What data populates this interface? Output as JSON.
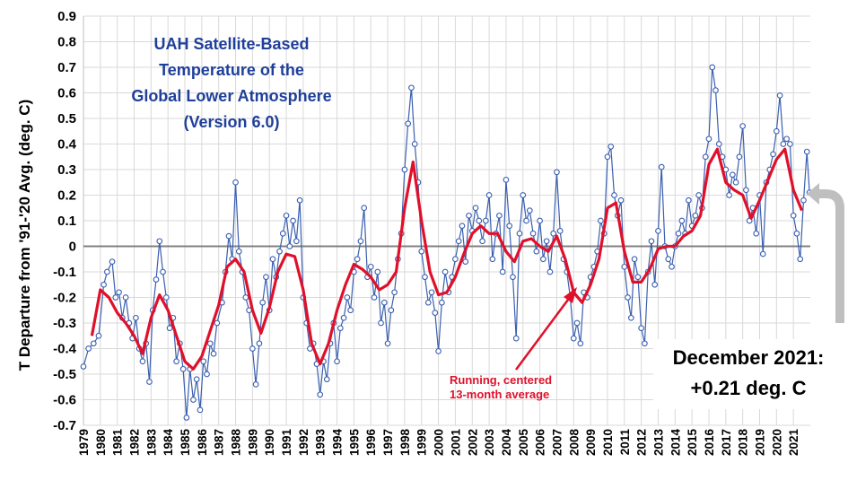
{
  "chart_data": {
    "type": "line",
    "title": [
      "UAH Satellite-Based",
      "Temperature of the",
      "Global Lower Atmosphere",
      "(Version 6.0)"
    ],
    "ylabel": "T Departure from '91-'20 Avg. (deg. C)",
    "xlabel": "",
    "ylim": [
      -0.7,
      0.9
    ],
    "y_ticks": [
      "0.9",
      "0.8",
      "0.7",
      "0.6",
      "0.5",
      "0.4",
      "0.3",
      "0.2",
      "0.1",
      "0",
      "-0.1",
      "-0.2",
      "-0.3",
      "-0.4",
      "-0.5",
      "-0.6",
      "-0.7"
    ],
    "x_ticks": [
      "1979",
      "1980",
      "1981",
      "1982",
      "1983",
      "1984",
      "1985",
      "1986",
      "1987",
      "1988",
      "1989",
      "1990",
      "1991",
      "1992",
      "1993",
      "1994",
      "1995",
      "1996",
      "1997",
      "1998",
      "1999",
      "2000",
      "2001",
      "2002",
      "2003",
      "2004",
      "2005",
      "2006",
      "2007",
      "2008",
      "2009",
      "2010",
      "2011",
      "2012",
      "2013",
      "2014",
      "2015",
      "2016",
      "2017",
      "2018",
      "2019",
      "2020",
      "2021"
    ],
    "grid": true,
    "colors": {
      "monthly": "#3a5fb0",
      "average": "#e0102a",
      "zero_line": "#808080",
      "title": "#1f3f99",
      "callout_arrow": "#bfbfbf"
    },
    "series_monthly_anchors": [
      [
        1979.0,
        -0.47
      ],
      [
        1979.3,
        -0.4
      ],
      [
        1979.6,
        -0.38
      ],
      [
        1979.9,
        -0.35
      ],
      [
        1980.2,
        -0.15
      ],
      [
        1980.4,
        -0.1
      ],
      [
        1980.7,
        -0.06
      ],
      [
        1980.9,
        -0.2
      ],
      [
        1981.1,
        -0.18
      ],
      [
        1981.3,
        -0.28
      ],
      [
        1981.5,
        -0.2
      ],
      [
        1981.7,
        -0.3
      ],
      [
        1981.9,
        -0.36
      ],
      [
        1982.1,
        -0.28
      ],
      [
        1982.3,
        -0.4
      ],
      [
        1982.5,
        -0.45
      ],
      [
        1982.7,
        -0.38
      ],
      [
        1982.9,
        -0.53
      ],
      [
        1983.1,
        -0.25
      ],
      [
        1983.3,
        -0.13
      ],
      [
        1983.5,
        0.02
      ],
      [
        1983.7,
        -0.1
      ],
      [
        1983.9,
        -0.2
      ],
      [
        1984.1,
        -0.32
      ],
      [
        1984.3,
        -0.28
      ],
      [
        1984.5,
        -0.45
      ],
      [
        1984.7,
        -0.38
      ],
      [
        1984.9,
        -0.48
      ],
      [
        1985.1,
        -0.67
      ],
      [
        1985.3,
        -0.48
      ],
      [
        1985.5,
        -0.6
      ],
      [
        1985.7,
        -0.52
      ],
      [
        1985.9,
        -0.64
      ],
      [
        1986.1,
        -0.45
      ],
      [
        1986.3,
        -0.5
      ],
      [
        1986.5,
        -0.38
      ],
      [
        1986.7,
        -0.42
      ],
      [
        1986.9,
        -0.3
      ],
      [
        1987.2,
        -0.22
      ],
      [
        1987.4,
        -0.1
      ],
      [
        1987.6,
        0.04
      ],
      [
        1987.8,
        -0.05
      ],
      [
        1988.0,
        0.25
      ],
      [
        1988.2,
        -0.02
      ],
      [
        1988.4,
        -0.1
      ],
      [
        1988.6,
        -0.2
      ],
      [
        1988.8,
        -0.25
      ],
      [
        1989.0,
        -0.4
      ],
      [
        1989.2,
        -0.54
      ],
      [
        1989.4,
        -0.38
      ],
      [
        1989.6,
        -0.22
      ],
      [
        1989.8,
        -0.12
      ],
      [
        1990.0,
        -0.25
      ],
      [
        1990.2,
        -0.05
      ],
      [
        1990.4,
        -0.12
      ],
      [
        1990.6,
        -0.02
      ],
      [
        1990.8,
        0.05
      ],
      [
        1991.0,
        0.12
      ],
      [
        1991.2,
        0.0
      ],
      [
        1991.4,
        0.1
      ],
      [
        1991.6,
        0.02
      ],
      [
        1991.8,
        0.18
      ],
      [
        1992.0,
        -0.2
      ],
      [
        1992.2,
        -0.3
      ],
      [
        1992.4,
        -0.4
      ],
      [
        1992.6,
        -0.38
      ],
      [
        1992.8,
        -0.46
      ],
      [
        1993.0,
        -0.58
      ],
      [
        1993.2,
        -0.45
      ],
      [
        1993.4,
        -0.52
      ],
      [
        1993.6,
        -0.38
      ],
      [
        1993.8,
        -0.3
      ],
      [
        1994.0,
        -0.45
      ],
      [
        1994.2,
        -0.32
      ],
      [
        1994.4,
        -0.28
      ],
      [
        1994.6,
        -0.2
      ],
      [
        1994.8,
        -0.25
      ],
      [
        1995.0,
        -0.1
      ],
      [
        1995.2,
        -0.05
      ],
      [
        1995.4,
        0.02
      ],
      [
        1995.6,
        0.15
      ],
      [
        1995.8,
        -0.12
      ],
      [
        1996.0,
        -0.08
      ],
      [
        1996.2,
        -0.2
      ],
      [
        1996.4,
        -0.1
      ],
      [
        1996.6,
        -0.3
      ],
      [
        1996.8,
        -0.22
      ],
      [
        1997.0,
        -0.38
      ],
      [
        1997.2,
        -0.25
      ],
      [
        1997.4,
        -0.18
      ],
      [
        1997.6,
        -0.05
      ],
      [
        1997.8,
        0.05
      ],
      [
        1998.0,
        0.3
      ],
      [
        1998.2,
        0.48
      ],
      [
        1998.4,
        0.62
      ],
      [
        1998.6,
        0.4
      ],
      [
        1998.8,
        0.25
      ],
      [
        1999.0,
        -0.02
      ],
      [
        1999.2,
        -0.12
      ],
      [
        1999.4,
        -0.22
      ],
      [
        1999.6,
        -0.18
      ],
      [
        1999.8,
        -0.26
      ],
      [
        2000.0,
        -0.41
      ],
      [
        2000.2,
        -0.22
      ],
      [
        2000.4,
        -0.1
      ],
      [
        2000.6,
        -0.18
      ],
      [
        2000.8,
        -0.12
      ],
      [
        2001.0,
        -0.05
      ],
      [
        2001.2,
        0.02
      ],
      [
        2001.4,
        0.08
      ],
      [
        2001.6,
        -0.06
      ],
      [
        2001.8,
        0.12
      ],
      [
        2002.0,
        0.06
      ],
      [
        2002.2,
        0.15
      ],
      [
        2002.4,
        0.1
      ],
      [
        2002.6,
        0.02
      ],
      [
        2002.8,
        0.1
      ],
      [
        2003.0,
        0.2
      ],
      [
        2003.2,
        -0.05
      ],
      [
        2003.4,
        0.05
      ],
      [
        2003.6,
        0.12
      ],
      [
        2003.8,
        -0.1
      ],
      [
        2004.0,
        0.26
      ],
      [
        2004.2,
        0.08
      ],
      [
        2004.4,
        -0.12
      ],
      [
        2004.6,
        -0.36
      ],
      [
        2004.8,
        0.05
      ],
      [
        2005.0,
        0.2
      ],
      [
        2005.2,
        0.1
      ],
      [
        2005.4,
        0.14
      ],
      [
        2005.6,
        0.05
      ],
      [
        2005.8,
        -0.02
      ],
      [
        2006.0,
        0.1
      ],
      [
        2006.2,
        -0.05
      ],
      [
        2006.4,
        0.02
      ],
      [
        2006.6,
        -0.1
      ],
      [
        2006.8,
        0.05
      ],
      [
        2007.0,
        0.29
      ],
      [
        2007.2,
        0.06
      ],
      [
        2007.4,
        -0.05
      ],
      [
        2007.6,
        -0.1
      ],
      [
        2007.8,
        -0.2
      ],
      [
        2008.0,
        -0.36
      ],
      [
        2008.2,
        -0.3
      ],
      [
        2008.4,
        -0.38
      ],
      [
        2008.6,
        -0.18
      ],
      [
        2008.8,
        -0.2
      ],
      [
        2009.0,
        -0.12
      ],
      [
        2009.2,
        -0.08
      ],
      [
        2009.4,
        -0.02
      ],
      [
        2009.6,
        0.1
      ],
      [
        2009.8,
        0.05
      ],
      [
        2010.0,
        0.35
      ],
      [
        2010.2,
        0.39
      ],
      [
        2010.4,
        0.2
      ],
      [
        2010.6,
        0.12
      ],
      [
        2010.8,
        0.18
      ],
      [
        2011.0,
        -0.08
      ],
      [
        2011.2,
        -0.2
      ],
      [
        2011.4,
        -0.28
      ],
      [
        2011.6,
        -0.05
      ],
      [
        2011.8,
        -0.12
      ],
      [
        2012.0,
        -0.32
      ],
      [
        2012.2,
        -0.38
      ],
      [
        2012.4,
        -0.1
      ],
      [
        2012.6,
        0.02
      ],
      [
        2012.8,
        -0.15
      ],
      [
        2013.0,
        0.06
      ],
      [
        2013.2,
        0.31
      ],
      [
        2013.4,
        0.0
      ],
      [
        2013.6,
        -0.05
      ],
      [
        2013.8,
        -0.08
      ],
      [
        2014.0,
        0.0
      ],
      [
        2014.2,
        0.05
      ],
      [
        2014.4,
        0.1
      ],
      [
        2014.6,
        0.05
      ],
      [
        2014.8,
        0.18
      ],
      [
        2015.0,
        0.08
      ],
      [
        2015.2,
        0.12
      ],
      [
        2015.4,
        0.2
      ],
      [
        2015.6,
        0.15
      ],
      [
        2015.8,
        0.35
      ],
      [
        2016.0,
        0.42
      ],
      [
        2016.2,
        0.7
      ],
      [
        2016.4,
        0.61
      ],
      [
        2016.6,
        0.4
      ],
      [
        2016.8,
        0.35
      ],
      [
        2017.0,
        0.3
      ],
      [
        2017.2,
        0.2
      ],
      [
        2017.4,
        0.28
      ],
      [
        2017.6,
        0.25
      ],
      [
        2017.8,
        0.35
      ],
      [
        2018.0,
        0.47
      ],
      [
        2018.2,
        0.22
      ],
      [
        2018.4,
        0.1
      ],
      [
        2018.6,
        0.15
      ],
      [
        2018.8,
        0.05
      ],
      [
        2019.0,
        0.2
      ],
      [
        2019.2,
        -0.03
      ],
      [
        2019.4,
        0.25
      ],
      [
        2019.6,
        0.3
      ],
      [
        2019.8,
        0.36
      ],
      [
        2020.0,
        0.45
      ],
      [
        2020.2,
        0.59
      ],
      [
        2020.4,
        0.4
      ],
      [
        2020.6,
        0.42
      ],
      [
        2020.8,
        0.4
      ],
      [
        2021.0,
        0.12
      ],
      [
        2021.2,
        0.05
      ],
      [
        2021.4,
        -0.05
      ],
      [
        2021.6,
        0.18
      ],
      [
        2021.8,
        0.37
      ],
      [
        2021.95,
        0.21
      ]
    ],
    "series_running_average": [
      [
        1979.5,
        -0.35
      ],
      [
        1980.0,
        -0.17
      ],
      [
        1980.5,
        -0.2
      ],
      [
        1981.0,
        -0.26
      ],
      [
        1981.5,
        -0.3
      ],
      [
        1982.0,
        -0.35
      ],
      [
        1982.5,
        -0.42
      ],
      [
        1983.0,
        -0.28
      ],
      [
        1983.5,
        -0.19
      ],
      [
        1984.0,
        -0.25
      ],
      [
        1984.5,
        -0.35
      ],
      [
        1985.0,
        -0.45
      ],
      [
        1985.5,
        -0.48
      ],
      [
        1986.0,
        -0.43
      ],
      [
        1986.5,
        -0.33
      ],
      [
        1987.0,
        -0.23
      ],
      [
        1987.5,
        -0.08
      ],
      [
        1988.0,
        -0.05
      ],
      [
        1988.5,
        -0.1
      ],
      [
        1989.0,
        -0.25
      ],
      [
        1989.5,
        -0.34
      ],
      [
        1990.0,
        -0.24
      ],
      [
        1990.5,
        -0.1
      ],
      [
        1991.0,
        -0.03
      ],
      [
        1991.5,
        -0.04
      ],
      [
        1992.0,
        -0.17
      ],
      [
        1992.5,
        -0.38
      ],
      [
        1993.0,
        -0.46
      ],
      [
        1993.5,
        -0.38
      ],
      [
        1994.0,
        -0.25
      ],
      [
        1994.5,
        -0.15
      ],
      [
        1995.0,
        -0.07
      ],
      [
        1995.5,
        -0.09
      ],
      [
        1996.0,
        -0.12
      ],
      [
        1996.5,
        -0.17
      ],
      [
        1997.0,
        -0.15
      ],
      [
        1997.5,
        -0.1
      ],
      [
        1998.0,
        0.15
      ],
      [
        1998.5,
        0.33
      ],
      [
        1999.0,
        0.1
      ],
      [
        1999.5,
        -0.1
      ],
      [
        2000.0,
        -0.19
      ],
      [
        2000.5,
        -0.18
      ],
      [
        2001.0,
        -0.12
      ],
      [
        2001.5,
        -0.03
      ],
      [
        2002.0,
        0.05
      ],
      [
        2002.5,
        0.08
      ],
      [
        2003.0,
        0.05
      ],
      [
        2003.5,
        0.05
      ],
      [
        2004.0,
        -0.02
      ],
      [
        2004.5,
        -0.06
      ],
      [
        2005.0,
        0.02
      ],
      [
        2005.5,
        0.03
      ],
      [
        2006.0,
        0.0
      ],
      [
        2006.5,
        -0.02
      ],
      [
        2007.0,
        0.04
      ],
      [
        2007.5,
        -0.05
      ],
      [
        2008.0,
        -0.18
      ],
      [
        2008.5,
        -0.22
      ],
      [
        2009.0,
        -0.15
      ],
      [
        2009.5,
        -0.05
      ],
      [
        2010.0,
        0.15
      ],
      [
        2010.5,
        0.17
      ],
      [
        2011.0,
        -0.02
      ],
      [
        2011.5,
        -0.14
      ],
      [
        2012.0,
        -0.14
      ],
      [
        2012.5,
        -0.09
      ],
      [
        2013.0,
        -0.01
      ],
      [
        2013.5,
        0.0
      ],
      [
        2014.0,
        0.0
      ],
      [
        2014.5,
        0.04
      ],
      [
        2015.0,
        0.06
      ],
      [
        2015.5,
        0.12
      ],
      [
        2016.0,
        0.32
      ],
      [
        2016.5,
        0.38
      ],
      [
        2017.0,
        0.25
      ],
      [
        2017.5,
        0.22
      ],
      [
        2018.0,
        0.2
      ],
      [
        2018.5,
        0.11
      ],
      [
        2019.0,
        0.18
      ],
      [
        2019.5,
        0.26
      ],
      [
        2020.0,
        0.34
      ],
      [
        2020.5,
        0.38
      ],
      [
        2021.0,
        0.22
      ],
      [
        2021.5,
        0.14
      ]
    ],
    "annotation": {
      "text": [
        "Running, centered",
        "13-month average"
      ]
    },
    "callout": {
      "text": [
        "December 2021:",
        "+0.21 deg. C"
      ],
      "value": 0.21
    }
  }
}
